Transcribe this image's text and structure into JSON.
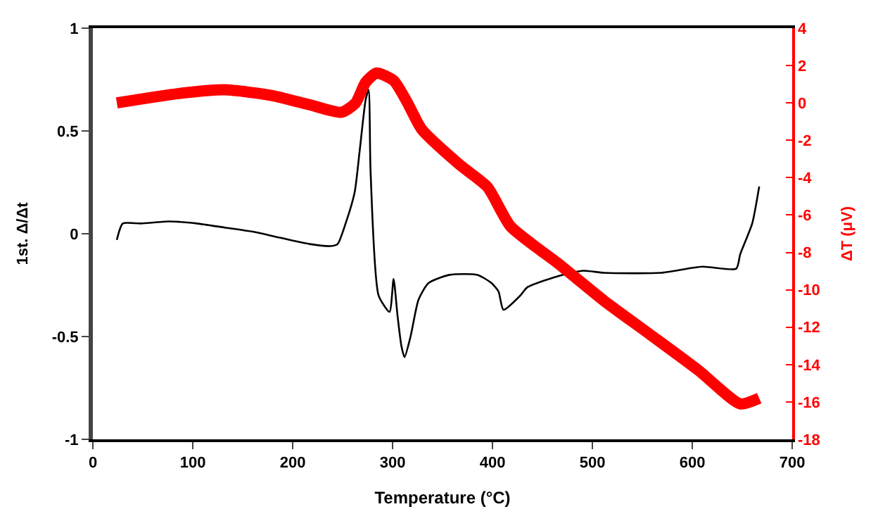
{
  "chart_data": {
    "type": "line",
    "xlabel": "Temperature (°C)",
    "ylabel": "1st. Δ/Δt",
    "y2label": "ΔT (μV)",
    "xlim": [
      0,
      700
    ],
    "xticks": [
      0,
      100,
      200,
      300,
      400,
      500,
      600,
      700
    ],
    "ylim": [
      -1,
      1
    ],
    "yticks": [
      {
        "value": 1,
        "label": "1"
      },
      {
        "value": 0.5,
        "label": "0.5"
      },
      {
        "value": 0,
        "label": "0"
      },
      {
        "value": -0.5,
        "label": "-0.5"
      },
      {
        "value": -1,
        "label": "-1"
      }
    ],
    "y2lim": [
      -18,
      4
    ],
    "y2ticks": [
      4,
      2,
      0,
      -2,
      -4,
      -6,
      -8,
      -10,
      -12,
      -14,
      -16,
      -18
    ],
    "marker": "none",
    "line_style": "solid",
    "series": [
      {
        "color": "#000000",
        "x": [
          24,
          30,
          48,
          76,
          104,
          132,
          160,
          188,
          217,
          238,
          245,
          253,
          262,
          267,
          273,
          276,
          278,
          286,
          297,
          301,
          305,
          309,
          312,
          318,
          326,
          336,
          357,
          385,
          399,
          406,
          411,
          428,
          435,
          470,
          491,
          512,
          568,
          610,
          644,
          648,
          660,
          667
        ],
        "values": [
          -0.03,
          0.05,
          0.05,
          0.06,
          0.05,
          0.03,
          0.01,
          -0.02,
          -0.05,
          -0.06,
          -0.05,
          0.05,
          0.2,
          0.4,
          0.65,
          0.7,
          0.3,
          -0.3,
          -0.38,
          -0.22,
          -0.4,
          -0.55,
          -0.6,
          -0.5,
          -0.32,
          -0.24,
          -0.2,
          -0.2,
          -0.24,
          -0.28,
          -0.37,
          -0.3,
          -0.26,
          -0.2,
          -0.18,
          -0.19,
          -0.19,
          -0.16,
          -0.17,
          -0.1,
          0.05,
          0.23
        ]
      },
      {
        "color": "#ff0000",
        "axis": "y2",
        "x": [
          24,
          86,
          132,
          179,
          217,
          249,
          263,
          273,
          284,
          301,
          315,
          329,
          367,
          395,
          418,
          466,
          512,
          558,
          606,
          648,
          667
        ],
        "values": [
          0.0,
          0.5,
          0.7,
          0.4,
          -0.1,
          -0.5,
          0,
          1.1,
          1.6,
          1.2,
          0,
          -1.4,
          -3.3,
          -4.5,
          -6.6,
          -8.6,
          -10.6,
          -12.4,
          -14.3,
          -16.1,
          -15.8
        ]
      }
    ]
  }
}
